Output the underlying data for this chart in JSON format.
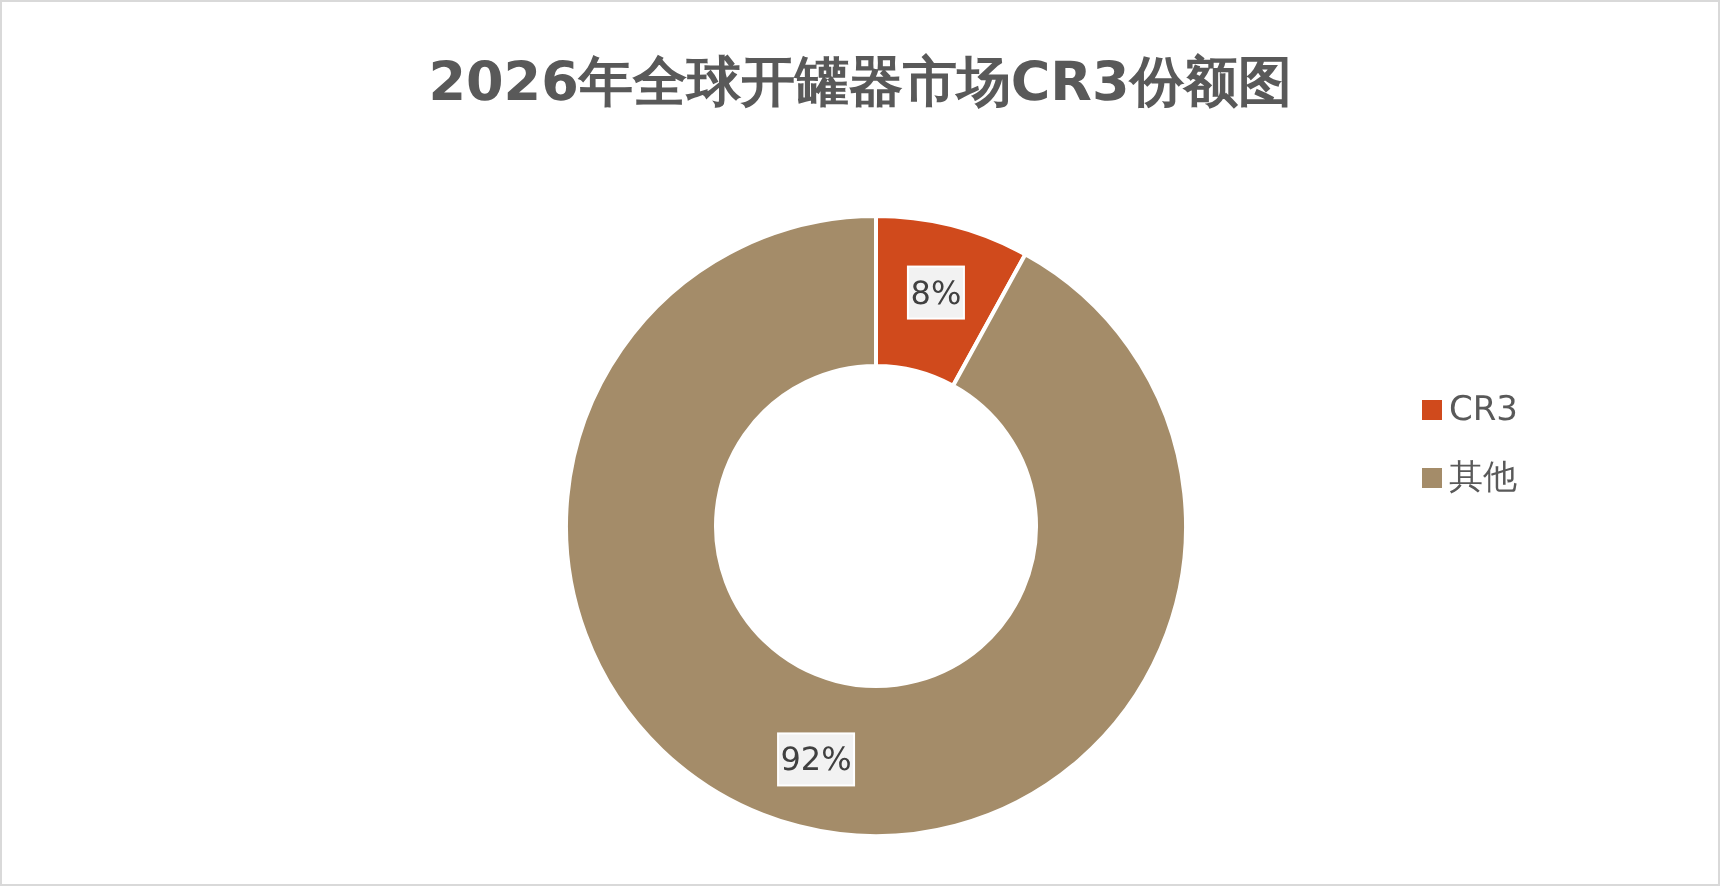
{
  "chart_data": {
    "type": "donut",
    "title": "2026年全球开罐器市场CR3份额图",
    "categories": [
      "CR3",
      "其他"
    ],
    "values": [
      8,
      92
    ],
    "colors": [
      "#d04a1c",
      "#a48c69"
    ],
    "value_labels": [
      "8%",
      "92%"
    ],
    "legend": "right"
  }
}
